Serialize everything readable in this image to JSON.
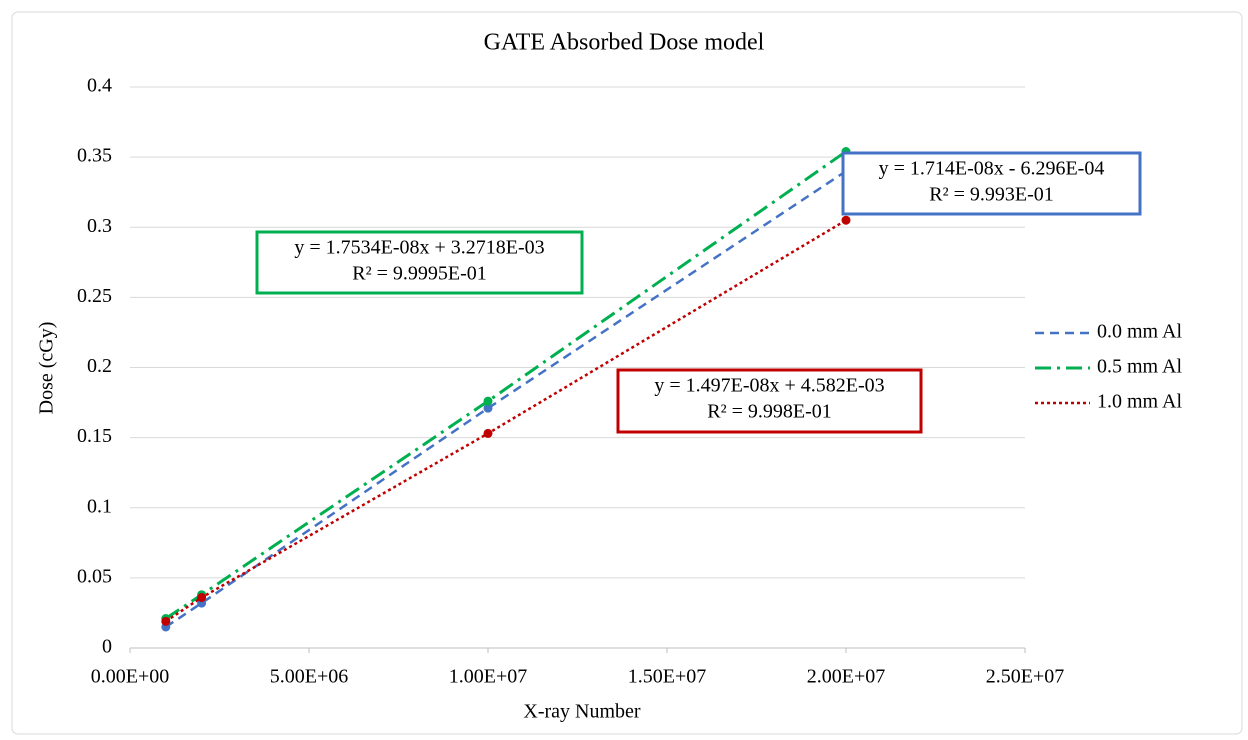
{
  "chart_data": {
    "type": "scatter",
    "title": "GATE Absorbed Dose model",
    "x_label": "X-ray Number",
    "y_label": "Dose (cGy)",
    "xlim": [
      0,
      25000000
    ],
    "xticks": [
      {
        "value": 0,
        "label": "0.00E+00"
      },
      {
        "value": 5000000,
        "label": "5.00E+06"
      },
      {
        "value": 10000000,
        "label": "1.00E+07"
      },
      {
        "value": 15000000,
        "label": "1.50E+07"
      },
      {
        "value": 20000000,
        "label": "2.00E+07"
      },
      {
        "value": 25000000,
        "label": "2.50E+07"
      }
    ],
    "ylim": [
      0,
      0.4
    ],
    "yticks": [
      0,
      0.05,
      0.1,
      0.15,
      0.2,
      0.25,
      0.3,
      0.35,
      0.4
    ],
    "grid": true,
    "legend": "right",
    "series": [
      {
        "name": "0.0 mm Al",
        "color": "#4472c4",
        "x": [
          1000000,
          2000000,
          10000000,
          20000000
        ],
        "values": [
          0.015,
          0.032,
          0.171,
          0.34
        ]
      },
      {
        "name": "0.5 mm Al",
        "color": "#00b050",
        "x": [
          1000000,
          2000000,
          10000000,
          20000000
        ],
        "values": [
          0.021,
          0.038,
          0.176,
          0.354
        ]
      },
      {
        "name": "1.0 mm Al",
        "color": "#c00000",
        "x": [
          1000000,
          2000000,
          10000000,
          20000000
        ],
        "values": [
          0.019,
          0.036,
          0.153,
          0.305
        ]
      }
    ],
    "annotations": [
      {
        "lines": [
          "y = 1.714E-08x - 6.296E-04",
          "R² = 9.993E-01"
        ],
        "color": "#4472c4"
      },
      {
        "lines": [
          "y = 1.7534E-08x + 3.2718E-03",
          "R² = 9.9995E-01"
        ],
        "color": "#00b050"
      },
      {
        "lines": [
          "y = 1.497E-08x + 4.582E-03",
          "R² = 9.998E-01"
        ],
        "color": "#c00000"
      }
    ]
  }
}
